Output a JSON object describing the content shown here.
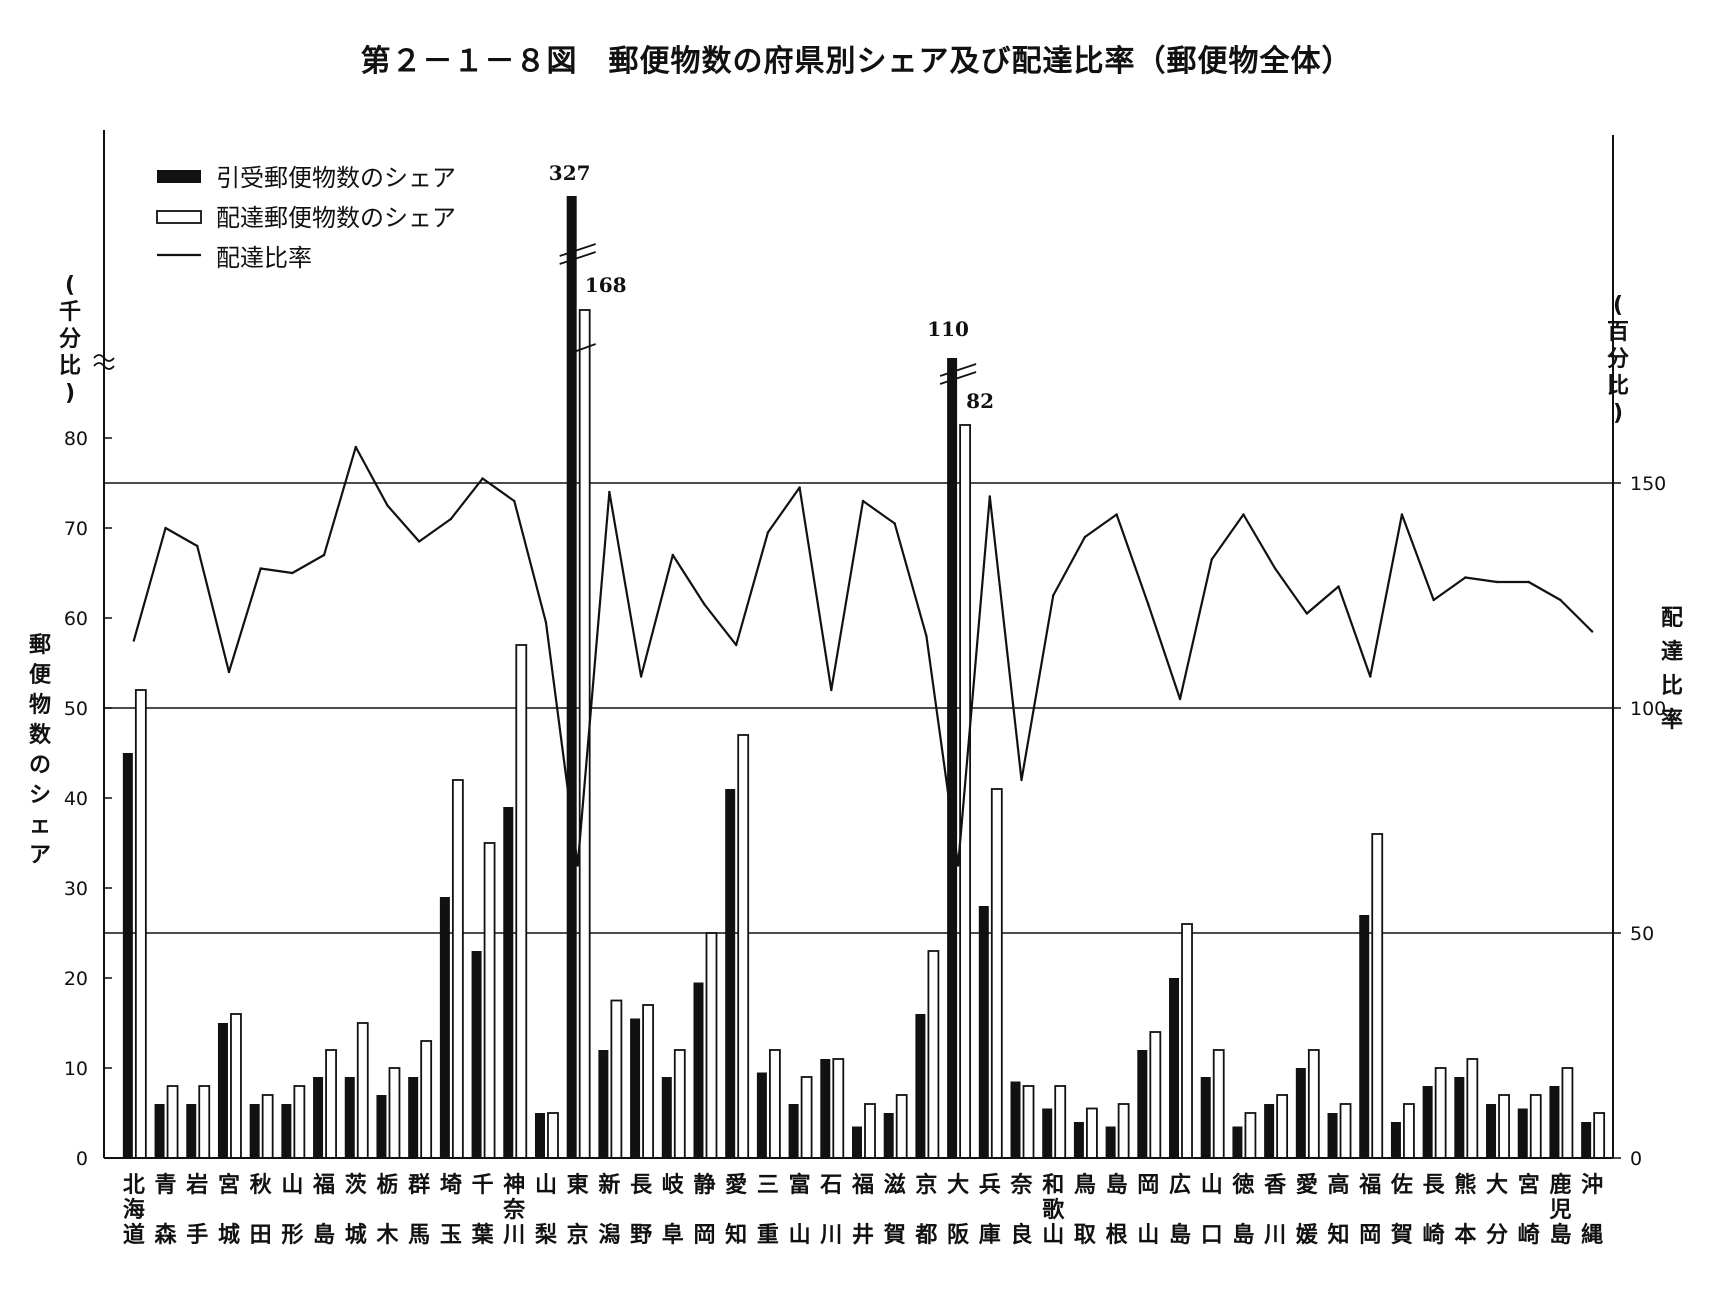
{
  "title": "第２－１－８図　郵便物数の府県別シェア及び配達比率（郵便物全体）",
  "chart_data": {
    "type": "bar",
    "categories": [
      "北海道",
      "青森",
      "岩手",
      "宮城",
      "秋田",
      "山形",
      "福島",
      "茨城",
      "栃木",
      "群馬",
      "埼玉",
      "千葉",
      "神奈川",
      "山梨",
      "東京",
      "新潟",
      "長野",
      "岐阜",
      "静岡",
      "愛知",
      "三重",
      "富山",
      "石川",
      "福井",
      "滋賀",
      "京都",
      "大阪",
      "兵庫",
      "奈良",
      "和歌山",
      "鳥取",
      "島根",
      "岡山",
      "広島",
      "山口",
      "徳島",
      "香川",
      "愛媛",
      "高知",
      "福岡",
      "佐賀",
      "長崎",
      "熊本",
      "大分",
      "宮崎",
      "鹿児島",
      "沖縄"
    ],
    "category_labels": [
      "北\n海\n道",
      "青\n\n森",
      "岩\n\n手",
      "宮\n\n城",
      "秋\n\n田",
      "山\n\n形",
      "福\n\n島",
      "茨\n\n城",
      "栃\n\n木",
      "群\n\n馬",
      "埼\n\n玉",
      "千\n\n葉",
      "神\n奈\n川",
      "山\n\n梨",
      "東\n\n京",
      "新\n\n潟",
      "長\n\n野",
      "岐\n\n阜",
      "静\n\n岡",
      "愛\n\n知",
      "三\n\n重",
      "富\n\n山",
      "石\n\n川",
      "福\n\n井",
      "滋\n\n賀",
      "京\n\n都",
      "大\n\n阪",
      "兵\n\n庫",
      "奈\n\n良",
      "和\n歌\n山",
      "鳥\n\n取",
      "島\n\n根",
      "岡\n\n山",
      "広\n\n島",
      "山\n\n口",
      "徳\n\n島",
      "香\n\n川",
      "愛\n\n媛",
      "高\n\n知",
      "福\n\n岡",
      "佐\n\n賀",
      "長\n\n崎",
      "熊\n\n本",
      "大\n\n分",
      "宮\n\n崎",
      "鹿\n児\n島",
      "沖\n\n縄"
    ],
    "series": [
      {
        "name": "引受郵便物数のシェア",
        "axis": "left",
        "style": "filled",
        "color": "#111111",
        "values": [
          45,
          6,
          6,
          15,
          6,
          6,
          9,
          9,
          7,
          9,
          29,
          23,
          39,
          5,
          327,
          12,
          15.5,
          9,
          19.5,
          41,
          9.5,
          6,
          11,
          3.5,
          5,
          16,
          110,
          28,
          8.5,
          5.5,
          4,
          3.5,
          12,
          20,
          9,
          3.5,
          6,
          10,
          5,
          27,
          4,
          8,
          9,
          6,
          5.5,
          8,
          4
        ]
      },
      {
        "name": "配達郵便物数のシェア",
        "axis": "left",
        "style": "outline",
        "color": "#111111",
        "values": [
          52,
          8,
          8,
          16,
          7,
          8,
          12,
          15,
          10,
          13,
          42,
          35,
          57,
          5,
          168,
          17.5,
          17,
          12,
          25,
          47,
          12,
          9,
          11,
          6,
          7,
          23,
          82,
          41,
          8,
          8,
          5.5,
          6,
          14,
          26,
          12,
          5,
          7,
          12,
          6,
          36,
          6,
          10,
          11,
          7,
          7,
          10,
          5
        ]
      },
      {
        "name": "配達比率",
        "axis": "right",
        "style": "line",
        "color": "#111111",
        "values": [
          115,
          140,
          136,
          108,
          131,
          130,
          134,
          158,
          145,
          137,
          142,
          151,
          146,
          119,
          65,
          148,
          107,
          134,
          123,
          114,
          139,
          149,
          104,
          146,
          141,
          116,
          65,
          147,
          84,
          125,
          138,
          143,
          123,
          102,
          133,
          143,
          131,
          121,
          127,
          107,
          143,
          124,
          129,
          128,
          128,
          124,
          117
        ]
      }
    ],
    "value_labels": {
      "東京_引受": "327",
      "東京_配達": "168",
      "大阪_引受": "110",
      "大阪_配達": "82"
    },
    "left_axis": {
      "label": "郵便物数のシェア",
      "unit": "千分比",
      "ticks": [
        0,
        10,
        20,
        30,
        40,
        50,
        60,
        70,
        80
      ],
      "ylim": [
        0,
        80
      ],
      "broken": true
    },
    "right_axis": {
      "label": "配達比率",
      "unit": "百分比",
      "ticks": [
        0,
        50,
        100,
        150
      ],
      "ylim": [
        0,
        150
      ]
    },
    "gridlines_right": [
      50,
      100,
      150
    ],
    "legend": {
      "placement": "top-left",
      "entries": [
        "引受郵便物数のシェア",
        "配達郵便物数のシェア",
        "配達比率"
      ]
    }
  }
}
